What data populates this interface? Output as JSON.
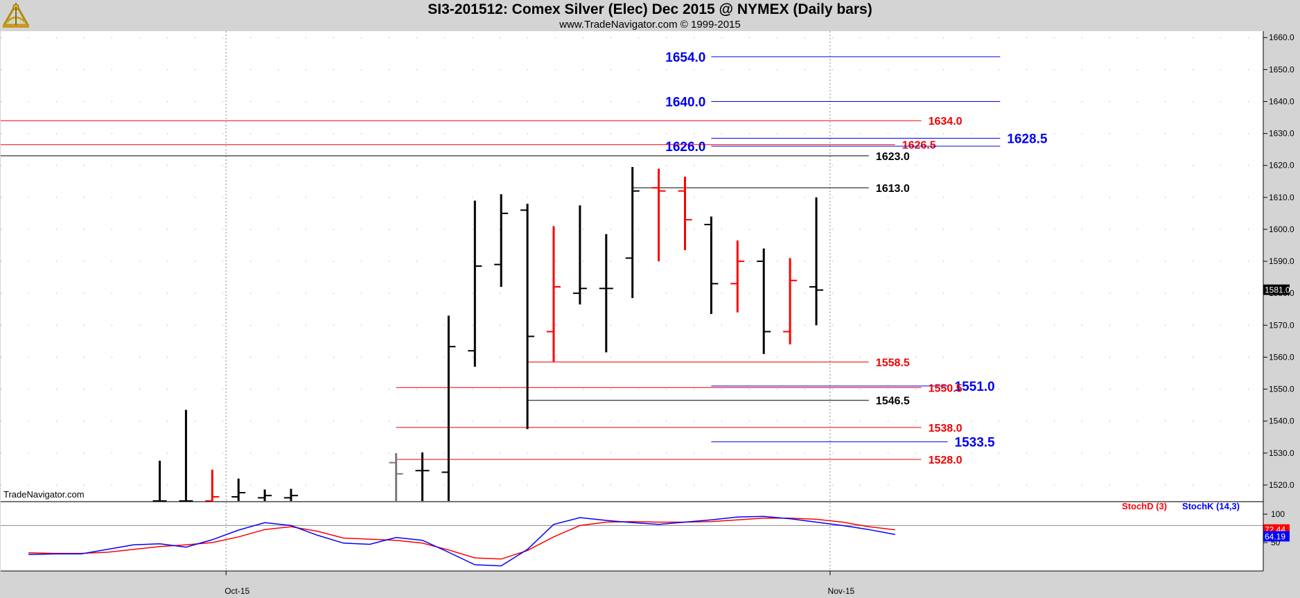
{
  "header": {
    "title": "SI3-201512:  Comex Silver (Elec) Dec 2015 @ NYMEX  (Daily bars)",
    "subtitle": "www.TradeNavigator.com © 1999-2015"
  },
  "watermark": "TradeNavigator.com",
  "colors": {
    "background": "#d4d4d4",
    "plot": "#ffffff",
    "up_bar": "#000000",
    "down_bar": "#ff0000",
    "blue_level": "#0000ee",
    "red_level": "#ee0000",
    "black_level": "#000000",
    "stoch_d": "#ff0000",
    "stoch_k": "#0000ff"
  },
  "chart_data": [
    {
      "type": "ohlc",
      "name": "price",
      "ylim": [
        1515,
        1662
      ],
      "y_ticks": [
        "1660.0",
        "1650.0",
        "1640.0",
        "1630.0",
        "1620.0",
        "1610.0",
        "1600.0",
        "1590.0",
        "1580.0",
        "1570.0",
        "1560.0",
        "1550.0",
        "1540.0",
        "1530.0",
        "1520.0"
      ],
      "x_labels": [
        "Oct-15",
        "Nov-15"
      ],
      "grid": "dotted",
      "last_price": "1581.0",
      "bars": [
        {
          "date": "Sep-28",
          "open": 1515.0,
          "high": 1527.6,
          "low": 1515.0,
          "close": 1515.0,
          "color": "up"
        },
        {
          "date": "Sep-29",
          "open": 1515.0,
          "high": 1543.5,
          "low": 1515.0,
          "close": 1515.0,
          "color": "up"
        },
        {
          "date": "Sep-30",
          "open": 1515.0,
          "high": 1524.8,
          "low": 1515.0,
          "close": 1516.3,
          "color": "down"
        },
        {
          "date": "Oct-01",
          "open": 1516.3,
          "high": 1522.0,
          "low": 1515.0,
          "close": 1517.6,
          "color": "up"
        },
        {
          "date": "Oct-02",
          "open": 1516.0,
          "high": 1518.6,
          "low": 1515.0,
          "close": 1516.7,
          "color": "up"
        },
        {
          "date": "Oct-05",
          "open": 1516.0,
          "high": 1518.8,
          "low": 1515.0,
          "close": 1516.7,
          "color": "up"
        },
        {
          "date": "Oct-09",
          "open": 1527.0,
          "high": 1530.0,
          "low": 1515.0,
          "close": 1523.5,
          "color": "gray"
        },
        {
          "date": "Oct-12",
          "open": 1524.5,
          "high": 1530.2,
          "low": 1515.0,
          "close": 1524.5,
          "color": "up"
        },
        {
          "date": "Oct-13",
          "open": 1524.0,
          "high": 1573.0,
          "low": 1515.0,
          "close": 1563.3,
          "color": "up"
        },
        {
          "date": "Oct-14",
          "open": 1562.0,
          "high": 1609.0,
          "low": 1557.0,
          "close": 1588.5,
          "color": "up"
        },
        {
          "date": "Oct-15",
          "open": 1589.0,
          "high": 1611.0,
          "low": 1582.0,
          "close": 1605.0,
          "color": "up"
        },
        {
          "date": "Oct-16",
          "open": 1606.0,
          "high": 1608.0,
          "low": 1537.5,
          "close": 1566.5,
          "color": "up"
        },
        {
          "date": "Oct-19",
          "open": 1568.0,
          "high": 1601.0,
          "low": 1558.5,
          "close": 1582.0,
          "color": "down"
        },
        {
          "date": "Oct-20",
          "open": 1580.0,
          "high": 1607.5,
          "low": 1576.5,
          "close": 1581.5,
          "color": "up"
        },
        {
          "date": "Oct-21",
          "open": 1581.5,
          "high": 1598.5,
          "low": 1561.5,
          "close": 1581.5,
          "color": "up"
        },
        {
          "date": "Oct-22",
          "open": 1591.0,
          "high": 1619.5,
          "low": 1578.5,
          "close": 1612.0,
          "color": "up"
        },
        {
          "date": "Oct-23",
          "open": 1613.0,
          "high": 1619.0,
          "low": 1590.0,
          "close": 1612.0,
          "color": "down"
        },
        {
          "date": "Oct-26",
          "open": 1612.0,
          "high": 1616.5,
          "low": 1593.5,
          "close": 1603.0,
          "color": "down"
        },
        {
          "date": "Oct-27",
          "open": 1601.5,
          "high": 1604.0,
          "low": 1573.5,
          "close": 1583.0,
          "color": "up"
        },
        {
          "date": "Oct-28",
          "open": 1583.0,
          "high": 1596.5,
          "low": 1574.0,
          "close": 1590.0,
          "color": "down"
        },
        {
          "date": "Oct-29",
          "open": 1590.0,
          "high": 1594.0,
          "low": 1561.0,
          "close": 1568.0,
          "color": "up"
        },
        {
          "date": "Oct-30",
          "open": 1568.0,
          "high": 1591.0,
          "low": 1564.0,
          "close": 1584.0,
          "color": "down"
        },
        {
          "date": "Nov-02",
          "open": 1582.0,
          "high": 1610.0,
          "low": 1570.0,
          "close": 1581.0,
          "color": "up"
        }
      ],
      "levels": [
        {
          "label": "1654.0",
          "value": 1654.0,
          "color": "blue",
          "from": "Oct-27",
          "to": "Nov-11",
          "label_at": "left"
        },
        {
          "label": "1640.0",
          "value": 1640.0,
          "color": "blue",
          "from": "Oct-27",
          "to": "Nov-11",
          "label_at": "left"
        },
        {
          "label": "1634.0",
          "value": 1634.0,
          "color": "red",
          "from": "start",
          "to": "Nov-06",
          "label_at": "right"
        },
        {
          "label": "1628.5",
          "value": 1628.5,
          "color": "blue",
          "from": "Oct-27",
          "to": "Nov-11",
          "label_at": "right"
        },
        {
          "label": "1626.5",
          "value": 1626.5,
          "color": "red",
          "from": "start",
          "to": "Nov-05",
          "label_at": "right"
        },
        {
          "label": "1626.0",
          "value": 1626.0,
          "color": "blue",
          "from": "Oct-27",
          "to": "Nov-11",
          "label_at": "left"
        },
        {
          "label": "1623.0",
          "value": 1623.0,
          "color": "black",
          "from": "start",
          "to": "Nov-04",
          "label_at": "right"
        },
        {
          "label": "1613.0",
          "value": 1613.0,
          "color": "black",
          "from": "Oct-22",
          "to": "Nov-04",
          "label_at": "right"
        },
        {
          "label": "1558.5",
          "value": 1558.5,
          "color": "red",
          "from": "Oct-16",
          "to": "Nov-04",
          "label_at": "right"
        },
        {
          "label": "1551.0",
          "value": 1551.0,
          "color": "blue",
          "from": "Oct-27",
          "to": "Nov-09",
          "label_at": "right"
        },
        {
          "label": "1550.5",
          "value": 1550.5,
          "color": "red",
          "from": "Oct-09",
          "to": "Nov-06",
          "label_at": "right"
        },
        {
          "label": "1546.5",
          "value": 1546.5,
          "color": "black",
          "from": "Oct-16",
          "to": "Nov-04",
          "label_at": "right"
        },
        {
          "label": "1538.0",
          "value": 1538.0,
          "color": "red",
          "from": "Oct-09",
          "to": "Nov-06",
          "label_at": "right"
        },
        {
          "label": "1533.5",
          "value": 1533.5,
          "color": "blue",
          "from": "Oct-27",
          "to": "Nov-09",
          "label_at": "right"
        },
        {
          "label": "1528.0",
          "value": 1528.0,
          "color": "red",
          "from": "Oct-09",
          "to": "Nov-06",
          "label_at": "right"
        }
      ]
    },
    {
      "type": "line",
      "name": "stochastic",
      "ylim": [
        0,
        122
      ],
      "y_ticks": [
        "100",
        "50"
      ],
      "legend": [
        "StochD (3)",
        "StochK (14,3)"
      ],
      "reference_line": 80,
      "last_values": {
        "d": "72.44",
        "k": "64.19"
      },
      "series": [
        {
          "name": "StochD (3)",
          "color": "red",
          "values": [
            {
              "x": "Sep-21",
              "y": 32
            },
            {
              "x": "Sep-22",
              "y": 31
            },
            {
              "x": "Sep-23",
              "y": 31
            },
            {
              "x": "Sep-24",
              "y": 33
            },
            {
              "x": "Sep-25",
              "y": 38
            },
            {
              "x": "Sep-28",
              "y": 43
            },
            {
              "x": "Sep-29",
              "y": 46
            },
            {
              "x": "Sep-30",
              "y": 50
            },
            {
              "x": "Oct-01",
              "y": 60
            },
            {
              "x": "Oct-02",
              "y": 73
            },
            {
              "x": "Oct-05",
              "y": 78
            },
            {
              "x": "Oct-06",
              "y": 70
            },
            {
              "x": "Oct-07",
              "y": 58
            },
            {
              "x": "Oct-08",
              "y": 56
            },
            {
              "x": "Oct-09",
              "y": 54
            },
            {
              "x": "Oct-12",
              "y": 49
            },
            {
              "x": "Oct-13",
              "y": 37
            },
            {
              "x": "Oct-14",
              "y": 23
            },
            {
              "x": "Oct-15",
              "y": 21
            },
            {
              "x": "Oct-16",
              "y": 36
            },
            {
              "x": "Oct-19",
              "y": 60
            },
            {
              "x": "Oct-20",
              "y": 80
            },
            {
              "x": "Oct-21",
              "y": 86
            },
            {
              "x": "Oct-22",
              "y": 87
            },
            {
              "x": "Oct-23",
              "y": 86
            },
            {
              "x": "Oct-26",
              "y": 86
            },
            {
              "x": "Oct-27",
              "y": 87
            },
            {
              "x": "Oct-28",
              "y": 90
            },
            {
              "x": "Oct-29",
              "y": 93
            },
            {
              "x": "Oct-30",
              "y": 93
            },
            {
              "x": "Nov-02",
              "y": 91
            },
            {
              "x": "Nov-03",
              "y": 86
            },
            {
              "x": "Nov-04",
              "y": 78
            },
            {
              "x": "Nov-05",
              "y": 72.44
            }
          ]
        },
        {
          "name": "StochK (14,3)",
          "color": "blue",
          "values": [
            {
              "x": "Sep-21",
              "y": 29
            },
            {
              "x": "Sep-22",
              "y": 30
            },
            {
              "x": "Sep-23",
              "y": 30
            },
            {
              "x": "Sep-24",
              "y": 38
            },
            {
              "x": "Sep-25",
              "y": 46
            },
            {
              "x": "Sep-28",
              "y": 48
            },
            {
              "x": "Sep-29",
              "y": 42
            },
            {
              "x": "Sep-30",
              "y": 55
            },
            {
              "x": "Oct-01",
              "y": 72
            },
            {
              "x": "Oct-02",
              "y": 85
            },
            {
              "x": "Oct-05",
              "y": 80
            },
            {
              "x": "Oct-06",
              "y": 63
            },
            {
              "x": "Oct-07",
              "y": 49
            },
            {
              "x": "Oct-08",
              "y": 47
            },
            {
              "x": "Oct-09",
              "y": 59
            },
            {
              "x": "Oct-12",
              "y": 54
            },
            {
              "x": "Oct-13",
              "y": 33
            },
            {
              "x": "Oct-14",
              "y": 11
            },
            {
              "x": "Oct-15",
              "y": 9
            },
            {
              "x": "Oct-16",
              "y": 38
            },
            {
              "x": "Oct-19",
              "y": 82
            },
            {
              "x": "Oct-20",
              "y": 94
            },
            {
              "x": "Oct-21",
              "y": 89
            },
            {
              "x": "Oct-22",
              "y": 85
            },
            {
              "x": "Oct-23",
              "y": 82
            },
            {
              "x": "Oct-26",
              "y": 86
            },
            {
              "x": "Oct-27",
              "y": 90
            },
            {
              "x": "Oct-28",
              "y": 95
            },
            {
              "x": "Oct-29",
              "y": 96
            },
            {
              "x": "Oct-30",
              "y": 92
            },
            {
              "x": "Nov-02",
              "y": 86
            },
            {
              "x": "Nov-03",
              "y": 80
            },
            {
              "x": "Nov-04",
              "y": 73
            },
            {
              "x": "Nov-05",
              "y": 64.19
            }
          ]
        }
      ]
    }
  ]
}
